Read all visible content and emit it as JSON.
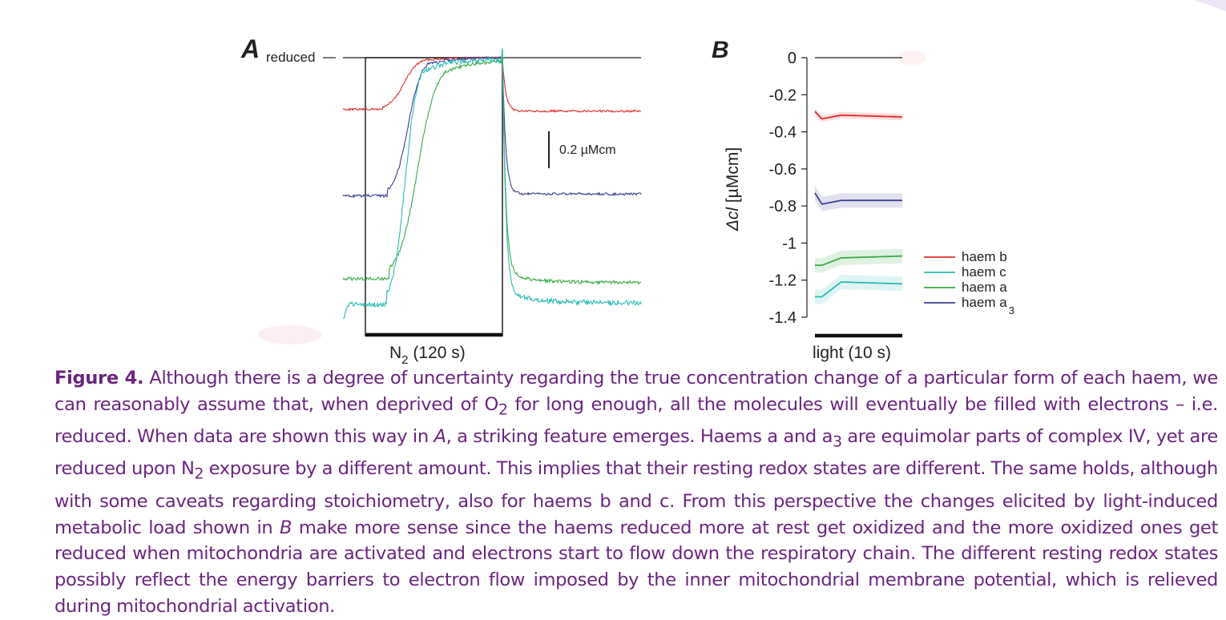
{
  "colors": {
    "haem_b": "#e02b2b",
    "haem_c": "#2cbab3",
    "haem_a": "#3aa947",
    "haem_a3": "#3d3f93",
    "caption": "#6b2580",
    "axis": "#222222"
  },
  "panelA": {
    "letter": "A",
    "reduced_label": "reduced",
    "stimulus_label_main": "N",
    "stimulus_label_sub": "2",
    "stimulus_label_tail": " (120 s)",
    "scalebar_label": "0.2 µMcm"
  },
  "panelB": {
    "letter": "B",
    "ylabel_italic": "Δcl",
    "ylabel_rest": " [µMcm]",
    "stimulus_label": "light (10 s)",
    "legend": [
      {
        "text": "haem b",
        "sub": "",
        "color_key": "haem_b"
      },
      {
        "text": "haem c",
        "sub": "",
        "color_key": "haem_c"
      },
      {
        "text": "haem a",
        "sub": "",
        "color_key": "haem_a"
      },
      {
        "text": "haem a",
        "sub": "3",
        "color_key": "haem_a3"
      }
    ]
  },
  "chart_data": [
    {
      "type": "line",
      "panel": "A",
      "unit": "µMcm",
      "scalebar_value": 0.2,
      "stimulus_duration_s": 120,
      "note_reference": "reduced",
      "series": [
        {
          "name": "haem b",
          "color_key": "haem_b",
          "baseline_before": -0.28,
          "reduced_level": 0.0,
          "baseline_after": -0.29
        },
        {
          "name": "haem a3",
          "color_key": "haem_a3",
          "baseline_before": -0.75,
          "reduced_level": 0.0,
          "baseline_after": -0.74
        },
        {
          "name": "haem a",
          "color_key": "haem_a",
          "baseline_before": -1.2,
          "reduced_level": -0.02,
          "baseline_after": -1.22
        },
        {
          "name": "haem c",
          "color_key": "haem_c",
          "baseline_before": -1.34,
          "reduced_level": -0.01,
          "baseline_after": -1.33
        }
      ]
    },
    {
      "type": "line",
      "panel": "B",
      "ylabel": "Δcl [µMcm]",
      "xlabel": "light (10 s)",
      "ylim": [
        -1.4,
        0
      ],
      "yticks": [
        "0",
        "-0.2",
        "-0.4",
        "-0.6",
        "-0.8",
        "-1",
        "-1.2",
        "-1.4"
      ],
      "yticks_values": [
        0,
        -0.2,
        -0.4,
        -0.6,
        -0.8,
        -1,
        -1.2,
        -1.4
      ],
      "stimulus_duration_s": 10,
      "legend_position": "right",
      "series": [
        {
          "name": "haem b",
          "color_key": "haem_b",
          "start": -0.29,
          "dip": -0.33,
          "plateau": -0.31,
          "end": -0.32
        },
        {
          "name": "haem c",
          "color_key": "haem_c",
          "start": -1.29,
          "dip": -1.29,
          "plateau": -1.21,
          "end": -1.22
        },
        {
          "name": "haem a",
          "color_key": "haem_a",
          "start": -1.12,
          "dip": -1.12,
          "plateau": -1.08,
          "end": -1.07
        },
        {
          "name": "haem a3",
          "color_key": "haem_a3",
          "start": -0.73,
          "dip": -0.79,
          "plateau": -0.77,
          "end": -0.77
        }
      ]
    }
  ],
  "caption": {
    "label": "Figure 4.",
    "p1": " Although there is a degree of uncertainty regarding the true concentration change of a particular form of each haem, we can reasonably assume that, when deprived of O",
    "p1_sub": "2",
    "p2": " for long enough, all the molecules will eventually be filled with electrons – i.e. reduced. When data are shown this way in ",
    "p2_ital": "A",
    "p3": ", a striking feature emerges. Haems a and a",
    "p3_sub": "3",
    "p4": " are equimolar parts of complex IV, yet are reduced upon N",
    "p4_sub": "2",
    "p5": " exposure by a different amount. This implies that their resting redox states are different. The same holds, although with some caveats regarding stoichiometry, also for haems b and c. From this perspective the changes elicited by light-induced metabolic load shown in ",
    "p5_ital": "B",
    "p6": " make more sense since the haems reduced more at rest get oxidized and the more oxidized ones get reduced when mitochondria are activated and electrons start to flow down the respiratory chain. The different resting redox states possibly reflect the energy barriers to electron flow imposed by the inner mitochondrial membrane potential, which is relieved during mitochondrial activation."
  }
}
